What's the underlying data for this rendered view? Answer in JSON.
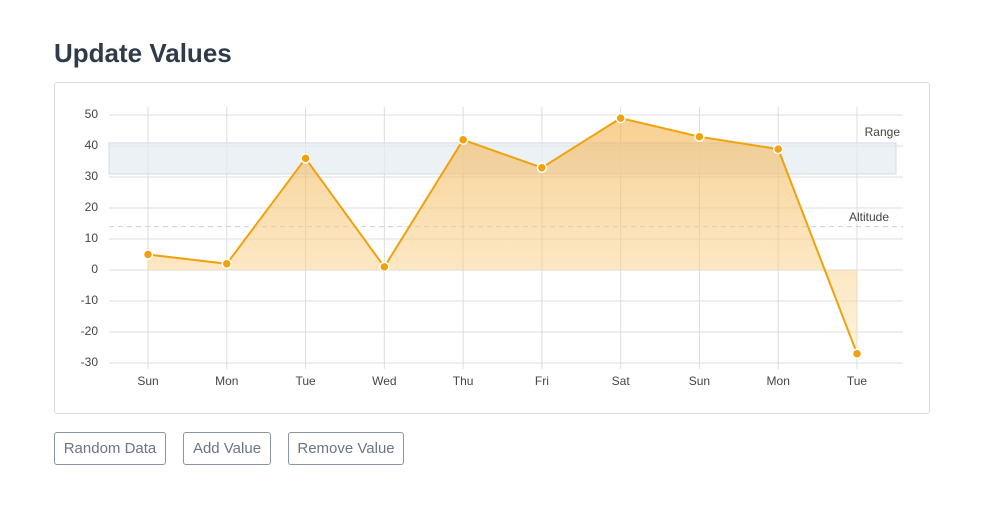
{
  "page": {
    "title": "Update Values",
    "buttons": [
      "Random Data",
      "Add Value",
      "Remove Value"
    ]
  },
  "chart_data": {
    "type": "area",
    "categories": [
      "Sun",
      "Mon",
      "Tue",
      "Wed",
      "Thu",
      "Fri",
      "Sat",
      "Sun",
      "Mon",
      "Tue"
    ],
    "series": [
      {
        "color": "#f0a20c",
        "values": [
          5,
          2,
          36,
          1,
          42,
          33,
          49,
          43,
          39,
          -27
        ]
      }
    ],
    "ylim": [
      -30,
      50
    ],
    "yticks": [
      -30,
      -20,
      -10,
      0,
      10,
      20,
      30,
      40,
      50
    ],
    "grid": true,
    "annotations": [
      {
        "label": "Range",
        "from": 31,
        "to": 41
      },
      {
        "label": "Altitude",
        "value": 14
      }
    ]
  }
}
